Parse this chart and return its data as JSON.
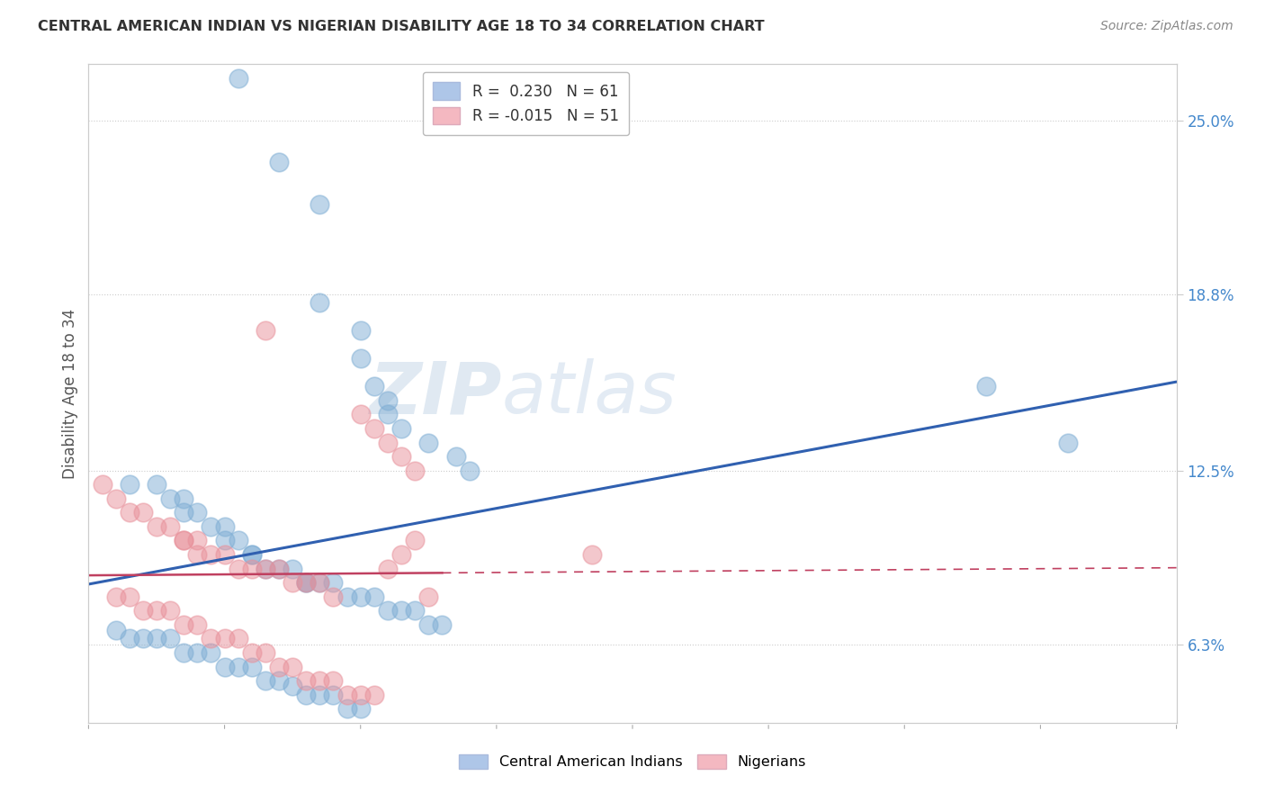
{
  "title": "CENTRAL AMERICAN INDIAN VS NIGERIAN DISABILITY AGE 18 TO 34 CORRELATION CHART",
  "source": "Source: ZipAtlas.com",
  "ylabel": "Disability Age 18 to 34",
  "yticks": [
    6.3,
    12.5,
    18.8,
    25.0
  ],
  "xlim": [
    0.0,
    40.0
  ],
  "ylim": [
    3.5,
    27.0
  ],
  "legend1_label": "R =  0.230   N = 61",
  "legend2_label": "R = -0.015   N = 51",
  "legend1_color": "#aec6e8",
  "legend2_color": "#f4b8c1",
  "scatter1_color": "#7eadd4",
  "scatter2_color": "#e8909a",
  "line1_color": "#3060b0",
  "line2_color": "#c04060",
  "watermark_zip": "ZIP",
  "watermark_atlas": "atlas",
  "group1_name": "Central American Indians",
  "group2_name": "Nigerians",
  "group1_x": [
    5.5,
    7.0,
    8.5,
    8.5,
    10.0,
    10.0,
    10.5,
    11.0,
    11.0,
    11.5,
    12.5,
    13.5,
    14.0,
    1.5,
    2.5,
    3.0,
    3.5,
    3.5,
    4.0,
    4.5,
    5.0,
    5.0,
    5.5,
    6.0,
    6.0,
    6.5,
    7.0,
    7.5,
    8.0,
    8.0,
    8.5,
    9.0,
    9.5,
    10.0,
    10.5,
    11.0,
    11.5,
    12.0,
    12.5,
    13.0,
    1.0,
    1.5,
    2.0,
    2.5,
    3.0,
    3.5,
    4.0,
    4.5,
    5.0,
    5.5,
    6.0,
    6.5,
    7.0,
    7.5,
    8.0,
    8.5,
    9.0,
    9.5,
    10.0,
    33.0,
    36.0
  ],
  "group1_y": [
    26.5,
    23.5,
    22.0,
    18.5,
    17.5,
    16.5,
    15.5,
    15.0,
    14.5,
    14.0,
    13.5,
    13.0,
    12.5,
    12.0,
    12.0,
    11.5,
    11.5,
    11.0,
    11.0,
    10.5,
    10.5,
    10.0,
    10.0,
    9.5,
    9.5,
    9.0,
    9.0,
    9.0,
    8.5,
    8.5,
    8.5,
    8.5,
    8.0,
    8.0,
    8.0,
    7.5,
    7.5,
    7.5,
    7.0,
    7.0,
    6.8,
    6.5,
    6.5,
    6.5,
    6.5,
    6.0,
    6.0,
    6.0,
    5.5,
    5.5,
    5.5,
    5.0,
    5.0,
    4.8,
    4.5,
    4.5,
    4.5,
    4.0,
    4.0,
    15.5,
    13.5
  ],
  "group2_x": [
    6.5,
    10.0,
    10.5,
    11.0,
    11.5,
    12.0,
    0.5,
    1.0,
    1.5,
    2.0,
    2.5,
    3.0,
    3.5,
    3.5,
    4.0,
    4.0,
    4.5,
    5.0,
    5.5,
    6.0,
    6.5,
    7.0,
    7.5,
    8.0,
    8.5,
    9.0,
    1.0,
    1.5,
    2.0,
    2.5,
    3.0,
    3.5,
    4.0,
    4.5,
    5.0,
    5.5,
    6.0,
    6.5,
    7.0,
    7.5,
    8.0,
    8.5,
    9.0,
    9.5,
    10.0,
    10.5,
    11.0,
    11.5,
    12.0,
    12.5,
    18.5
  ],
  "group2_y": [
    17.5,
    14.5,
    14.0,
    13.5,
    13.0,
    12.5,
    12.0,
    11.5,
    11.0,
    11.0,
    10.5,
    10.5,
    10.0,
    10.0,
    10.0,
    9.5,
    9.5,
    9.5,
    9.0,
    9.0,
    9.0,
    9.0,
    8.5,
    8.5,
    8.5,
    8.0,
    8.0,
    8.0,
    7.5,
    7.5,
    7.5,
    7.0,
    7.0,
    6.5,
    6.5,
    6.5,
    6.0,
    6.0,
    5.5,
    5.5,
    5.0,
    5.0,
    5.0,
    4.5,
    4.5,
    4.5,
    9.0,
    9.5,
    10.0,
    8.0,
    9.5
  ]
}
